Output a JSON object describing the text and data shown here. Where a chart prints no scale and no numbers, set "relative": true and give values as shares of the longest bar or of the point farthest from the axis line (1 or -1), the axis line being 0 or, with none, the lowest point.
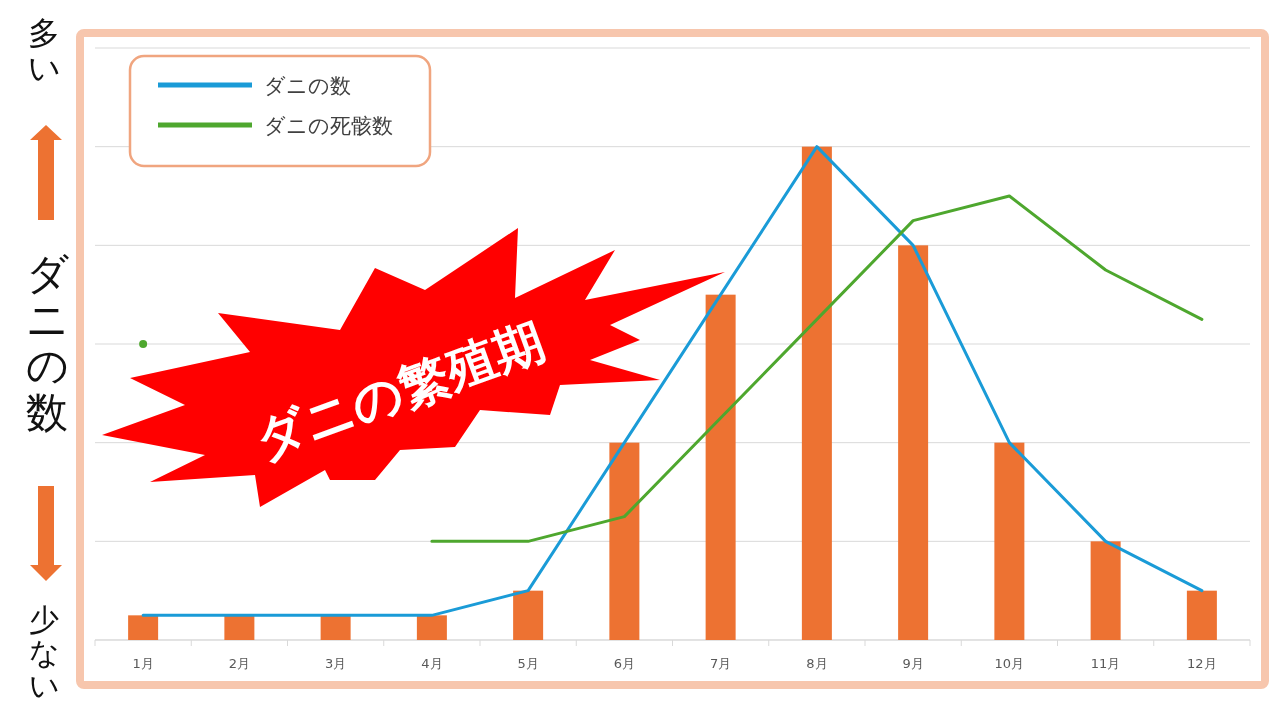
{
  "chart_data": {
    "type": "bar",
    "relative": true,
    "ylabel": "ダニの数",
    "categories": [
      "1月",
      "2月",
      "3月",
      "4月",
      "5月",
      "6月",
      "7月",
      "8月",
      "9月",
      "10月",
      "11月",
      "12月"
    ],
    "series": [
      {
        "color": "#ed7232",
        "values": [
          0.05,
          0.05,
          0.05,
          0.05,
          0.1,
          0.4,
          0.7,
          1,
          0.8,
          0.4,
          0.2,
          0.1
        ]
      },
      {
        "type": "line",
        "name": "ダニの数",
        "color": "#1a9bd7",
        "values": [
          0.05,
          0.05,
          0.05,
          0.05,
          0.1,
          0.4,
          0.7,
          1,
          0.8,
          0.4,
          0.2,
          0.1
        ]
      },
      {
        "type": "line",
        "name": "ダニの死骸数",
        "color": "#4ea72e",
        "values": [
          0.6,
          null,
          null,
          0.2,
          0.2,
          0.25,
          0.45,
          0.65,
          0.85,
          0.9,
          0.75,
          0.65
        ]
      }
    ],
    "grid": "y",
    "legend": "top left",
    "marker": "none",
    "annotations": [
      "多い",
      "少ない",
      "ダニの繁殖期"
    ]
  }
}
